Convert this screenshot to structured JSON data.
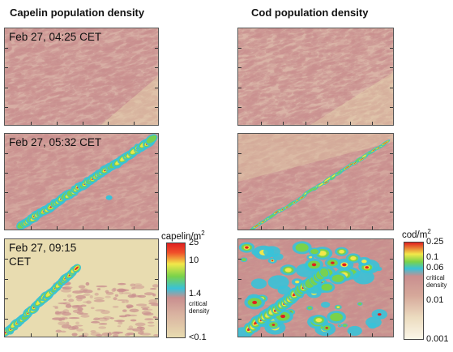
{
  "titles": {
    "capelin": "Capelin population density",
    "cod": "Cod population density"
  },
  "timestamps": {
    "row1": "Feb 27, 04:25 CET",
    "row2": "Feb 27, 05:32 CET",
    "row3_line1": "Feb 27, 09:15",
    "row3_line2": "CET"
  },
  "colorbars": {
    "capelin": {
      "unit": "capelin/m",
      "unit_exp": "2",
      "ticks": [
        "25",
        "10",
        "1.4",
        "<0.1"
      ],
      "critical_line1": "critical",
      "critical_line2": "density"
    },
    "cod": {
      "unit": "cod/m",
      "unit_exp": "2",
      "ticks": [
        "0.25",
        "0.1",
        "0.06",
        "0.01",
        "0.001"
      ],
      "critical_line1": "critical",
      "critical_line2": "density"
    }
  },
  "colors": {
    "background_low": "#e8dcb0",
    "background_mid": "#c98f8f",
    "cyan": "#39c2d8",
    "green": "#7ad24a",
    "yellow": "#f2e84a",
    "red": "#e02020"
  },
  "chart_data": [
    {
      "type": "heatmap",
      "title": "Capelin population density",
      "panels": [
        {
          "timestamp": "Feb 27, 04:25 CET",
          "dense_band": false
        },
        {
          "timestamp": "Feb 27, 05:32 CET",
          "dense_band": true
        },
        {
          "timestamp": "Feb 27, 09:15 CET",
          "dense_band": true
        }
      ],
      "colorbar": {
        "unit": "capelin/m2",
        "ticks": [
          "25",
          "10",
          "1.4",
          "<0.1"
        ],
        "critical_density": 1.4,
        "range": [
          0.1,
          25
        ]
      }
    },
    {
      "type": "heatmap",
      "title": "Cod population density",
      "panels": [
        {
          "timestamp": "Feb 27, 04:25 CET",
          "dense_band": false
        },
        {
          "timestamp": "Feb 27, 05:32 CET",
          "dense_band": true
        },
        {
          "timestamp": "Feb 27, 09:15 CET",
          "dense_band": true
        }
      ],
      "colorbar": {
        "unit": "cod/m2",
        "ticks": [
          "0.25",
          "0.1",
          "0.06",
          "0.01",
          "0.001"
        ],
        "critical_density": 0.06,
        "range": [
          0.001,
          0.25
        ]
      }
    }
  ]
}
